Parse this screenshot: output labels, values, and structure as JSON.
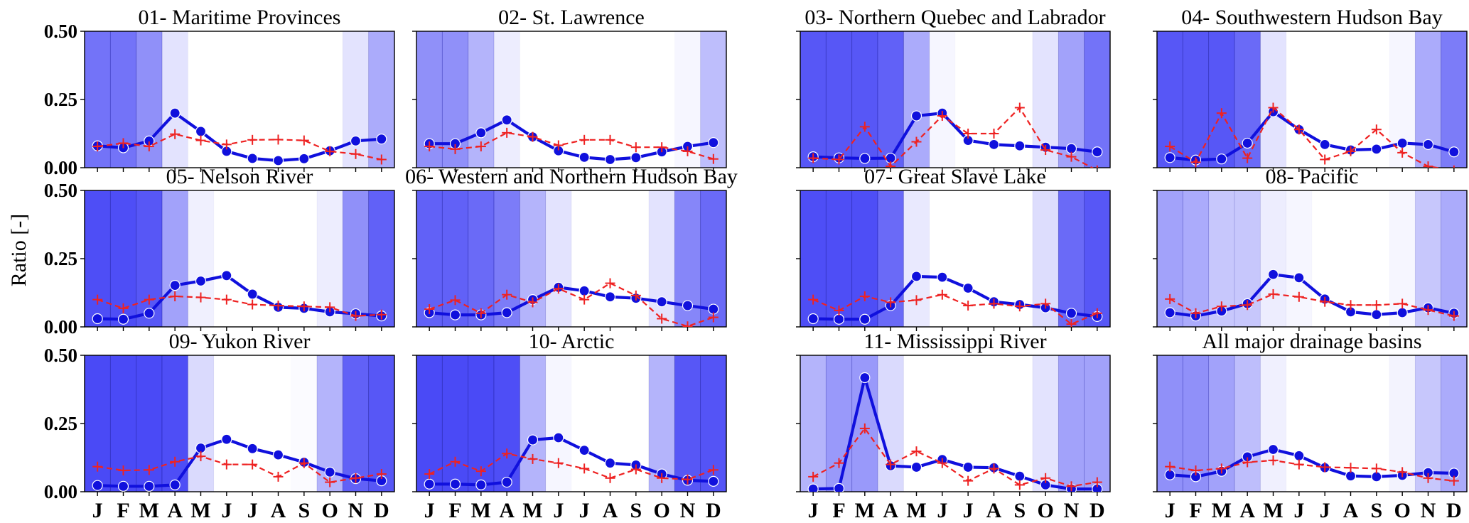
{
  "figure": {
    "ylabel": "Ratio [-]"
  },
  "colors": {
    "observed": "#1010dd",
    "simulated": "#ee2222",
    "shade": "#3b3bf5"
  },
  "chart_data": {
    "type": "line",
    "ylim": [
      0,
      0.5
    ],
    "yticks": [
      "0.00",
      "0.25",
      "0.50"
    ],
    "months": [
      "J",
      "F",
      "M",
      "A",
      "M",
      "J",
      "J",
      "A",
      "S",
      "O",
      "N",
      "D"
    ],
    "legend": "none",
    "grid": false,
    "panels": [
      {
        "title": "01- Maritime Provinces",
        "shade": [
          0.75,
          0.75,
          0.6,
          0.15,
          0,
          0,
          0,
          0,
          0,
          0,
          0.15,
          0.45
        ],
        "series": [
          {
            "style": "solid-circle",
            "values": [
              0.08,
              0.073,
              0.098,
              0.2,
              0.133,
              0.06,
              0.034,
              0.026,
              0.033,
              0.062,
              0.098,
              0.105
            ]
          },
          {
            "style": "dashed-plus",
            "values": [
              0.078,
              0.09,
              0.078,
              0.123,
              0.1,
              0.085,
              0.102,
              0.103,
              0.1,
              0.06,
              0.05,
              0.03
            ]
          }
        ]
      },
      {
        "title": "02- St. Lawrence",
        "shade": [
          0.6,
          0.6,
          0.4,
          0.1,
          0,
          0,
          0,
          0,
          0,
          0,
          0.05,
          0.35
        ],
        "series": [
          {
            "style": "solid-circle",
            "values": [
              0.088,
              0.088,
              0.128,
              0.175,
              0.113,
              0.062,
              0.038,
              0.03,
              0.037,
              0.058,
              0.078,
              0.092
            ]
          },
          {
            "style": "dashed-plus",
            "values": [
              0.078,
              0.068,
              0.078,
              0.128,
              0.113,
              0.082,
              0.102,
              0.102,
              0.075,
              0.075,
              0.06,
              0.032
            ]
          }
        ]
      },
      {
        "title": "03- Northern Quebec and Labrador",
        "shade": [
          0.9,
          0.9,
          0.9,
          0.85,
          0.45,
          0.05,
          0,
          0,
          0,
          0.15,
          0.5,
          0.75
        ],
        "series": [
          {
            "style": "solid-circle",
            "values": [
              0.04,
              0.036,
              0.034,
              0.035,
              0.19,
              0.2,
              0.1,
              0.085,
              0.08,
              0.075,
              0.07,
              0.058
            ]
          },
          {
            "style": "dashed-plus",
            "values": [
              0.035,
              0.03,
              0.15,
              0.005,
              0.095,
              0.19,
              0.125,
              0.125,
              0.22,
              0.065,
              0.04,
              -0.01
            ]
          }
        ]
      },
      {
        "title": "04- Southwestern Hudson Bay",
        "shade": [
          0.9,
          0.9,
          0.9,
          0.8,
          0.15,
          0,
          0,
          0,
          0,
          0.05,
          0.45,
          0.7
        ],
        "series": [
          {
            "style": "solid-circle",
            "values": [
              0.037,
              0.028,
              0.032,
              0.09,
              0.205,
              0.14,
              0.085,
              0.065,
              0.068,
              0.09,
              0.085,
              0.058
            ]
          },
          {
            "style": "dashed-plus",
            "values": [
              0.078,
              0.02,
              0.2,
              0.035,
              0.22,
              0.14,
              0.03,
              0.06,
              0.14,
              0.055,
              0.005,
              -0.01
            ]
          }
        ]
      },
      {
        "title": "05- Nelson River",
        "shade": [
          0.95,
          0.95,
          0.9,
          0.5,
          0.08,
          0,
          0,
          0,
          0,
          0.1,
          0.6,
          0.85
        ],
        "series": [
          {
            "style": "solid-circle",
            "values": [
              0.03,
              0.028,
              0.05,
              0.152,
              0.168,
              0.188,
              0.12,
              0.072,
              0.068,
              0.055,
              0.048,
              0.04
            ]
          },
          {
            "style": "dashed-plus",
            "values": [
              0.1,
              0.068,
              0.1,
              0.112,
              0.108,
              0.1,
              0.082,
              0.078,
              0.075,
              0.072,
              0.04,
              0.045
            ]
          }
        ]
      },
      {
        "title": "06- Western and Northern Hudson Bay",
        "shade": [
          0.85,
          0.85,
          0.8,
          0.7,
          0.4,
          0.15,
          0,
          0,
          0,
          0.15,
          0.65,
          0.8
        ],
        "series": [
          {
            "style": "solid-circle",
            "values": [
              0.052,
              0.044,
              0.044,
              0.052,
              0.1,
              0.145,
              0.132,
              0.11,
              0.105,
              0.092,
              0.078,
              0.065
            ]
          },
          {
            "style": "dashed-plus",
            "values": [
              0.065,
              0.098,
              0.05,
              0.118,
              0.09,
              0.14,
              0.1,
              0.16,
              0.115,
              0.03,
              0.002,
              0.035
            ]
          }
        ]
      },
      {
        "title": "07- Great Slave Lake",
        "shade": [
          0.95,
          0.95,
          0.95,
          0.8,
          0.12,
          0,
          0,
          0,
          0,
          0.18,
          0.8,
          0.9
        ],
        "series": [
          {
            "style": "solid-circle",
            "values": [
              0.03,
              0.028,
              0.028,
              0.078,
              0.185,
              0.182,
              0.142,
              0.092,
              0.082,
              0.07,
              0.05,
              0.038
            ]
          },
          {
            "style": "dashed-plus",
            "values": [
              0.1,
              0.06,
              0.112,
              0.09,
              0.098,
              0.118,
              0.078,
              0.085,
              0.075,
              0.085,
              0.01,
              0.05
            ]
          }
        ]
      },
      {
        "title": "08- Pacific",
        "shade": [
          0.5,
          0.45,
          0.3,
          0.3,
          0.1,
          0.05,
          0,
          0,
          0,
          0.05,
          0.3,
          0.45
        ],
        "series": [
          {
            "style": "solid-circle",
            "values": [
              0.052,
              0.04,
              0.058,
              0.085,
              0.192,
              0.18,
              0.102,
              0.055,
              0.045,
              0.052,
              0.07,
              0.05
            ]
          },
          {
            "style": "dashed-plus",
            "values": [
              0.102,
              0.05,
              0.075,
              0.08,
              0.12,
              0.11,
              0.092,
              0.08,
              0.08,
              0.085,
              0.062,
              0.04
            ]
          }
        ]
      },
      {
        "title": "09- Yukon River",
        "shade": [
          0.97,
          0.97,
          0.97,
          0.95,
          0.2,
          0,
          0,
          0,
          0.02,
          0.4,
          0.85,
          0.9
        ],
        "series": [
          {
            "style": "solid-circle",
            "values": [
              0.023,
              0.02,
              0.02,
              0.025,
              0.16,
              0.192,
              0.158,
              0.135,
              0.108,
              0.072,
              0.048,
              0.04
            ]
          },
          {
            "style": "dashed-plus",
            "values": [
              0.092,
              0.078,
              0.08,
              0.11,
              0.13,
              0.1,
              0.1,
              0.055,
              0.105,
              0.035,
              0.05,
              0.065
            ]
          }
        ]
      },
      {
        "title": "10- Arctic",
        "shade": [
          0.97,
          0.97,
          0.97,
          0.95,
          0.4,
          0.05,
          0,
          0,
          0,
          0.4,
          0.9,
          0.92
        ],
        "series": [
          {
            "style": "solid-circle",
            "values": [
              0.028,
              0.028,
              0.025,
              0.035,
              0.19,
              0.198,
              0.152,
              0.105,
              0.098,
              0.065,
              0.042,
              0.038
            ]
          },
          {
            "style": "dashed-plus",
            "values": [
              0.065,
              0.11,
              0.075,
              0.14,
              0.12,
              0.105,
              0.085,
              0.05,
              0.082,
              0.05,
              0.045,
              0.08
            ]
          }
        ]
      },
      {
        "title": "11- Mississippi River",
        "shade": [
          0.4,
          0.55,
          0.55,
          0.2,
          0,
          0,
          0,
          0,
          0,
          0.15,
          0.5,
          0.5
        ],
        "series": [
          {
            "style": "solid-circle",
            "values": [
              0.01,
              0.012,
              0.418,
              0.095,
              0.09,
              0.118,
              0.09,
              0.088,
              0.057,
              0.025,
              0.01,
              0.01
            ]
          },
          {
            "style": "dashed-plus",
            "values": [
              0.055,
              0.105,
              0.232,
              0.1,
              0.148,
              0.105,
              0.04,
              0.085,
              0.025,
              0.05,
              0.02,
              0.035
            ]
          }
        ]
      },
      {
        "title": "All major drainage basins",
        "shade": [
          0.6,
          0.6,
          0.5,
          0.35,
          0.08,
          0,
          0,
          0,
          0,
          0.06,
          0.3,
          0.45
        ],
        "series": [
          {
            "style": "solid-circle",
            "values": [
              0.062,
              0.055,
              0.075,
              0.128,
              0.155,
              0.132,
              0.088,
              0.058,
              0.055,
              0.06,
              0.07,
              0.068
            ]
          },
          {
            "style": "dashed-plus",
            "values": [
              0.092,
              0.078,
              0.085,
              0.108,
              0.115,
              0.1,
              0.09,
              0.088,
              0.085,
              0.072,
              0.05,
              0.04
            ]
          }
        ]
      }
    ]
  }
}
